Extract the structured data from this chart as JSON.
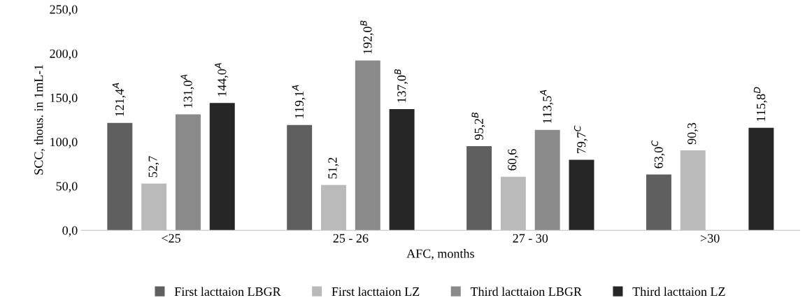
{
  "chart_data": {
    "type": "bar",
    "xlabel": "AFC, months",
    "ylabel": "SCC, thous. in 1mL-1",
    "categories": [
      "<25",
      "25 - 26",
      "27 - 30",
      ">30"
    ],
    "series": [
      {
        "name": "First lacttaion LBGR",
        "color": "#5f5f5f",
        "values": [
          121.4,
          119.1,
          95.2,
          63.0
        ],
        "value_labels": [
          "121,4$^{A}$",
          "119,1$^{A}$",
          "95,2$^{B}$",
          "63,0$^{C}$"
        ]
      },
      {
        "name": "First lacttaion LZ",
        "color": "#bababa",
        "values": [
          52.7,
          51.2,
          60.6,
          90.3
        ],
        "value_labels": [
          "52,7",
          "51,2",
          "60,6",
          "90,3"
        ]
      },
      {
        "name": "Third lacttaion LBGR",
        "color": "#8a8a8a",
        "values": [
          131.0,
          192.0,
          113.5,
          null
        ],
        "value_labels": [
          "131,0$^{A}$",
          "192,0$^{B}$",
          "113,5$^{A}$",
          null
        ]
      },
      {
        "name": "Third lacttaion LZ",
        "color": "#262626",
        "values": [
          144.0,
          137.0,
          79.7,
          115.8
        ],
        "value_labels": [
          "144,0$^{A}$",
          "137,0$^{B}$",
          "79,7$^{C}$",
          "115,8$^{D}$"
        ]
      }
    ],
    "ylim": [
      0,
      250
    ],
    "yticks": [
      {
        "value": 0,
        "label": "0,0"
      },
      {
        "value": 50,
        "label": "50,0"
      },
      {
        "value": 100,
        "label": "100,0"
      },
      {
        "value": 150,
        "label": "150,0"
      },
      {
        "value": 200,
        "label": "200,0"
      },
      {
        "value": 250,
        "label": "250,0"
      }
    ],
    "grid": false,
    "legend": "bottom"
  }
}
